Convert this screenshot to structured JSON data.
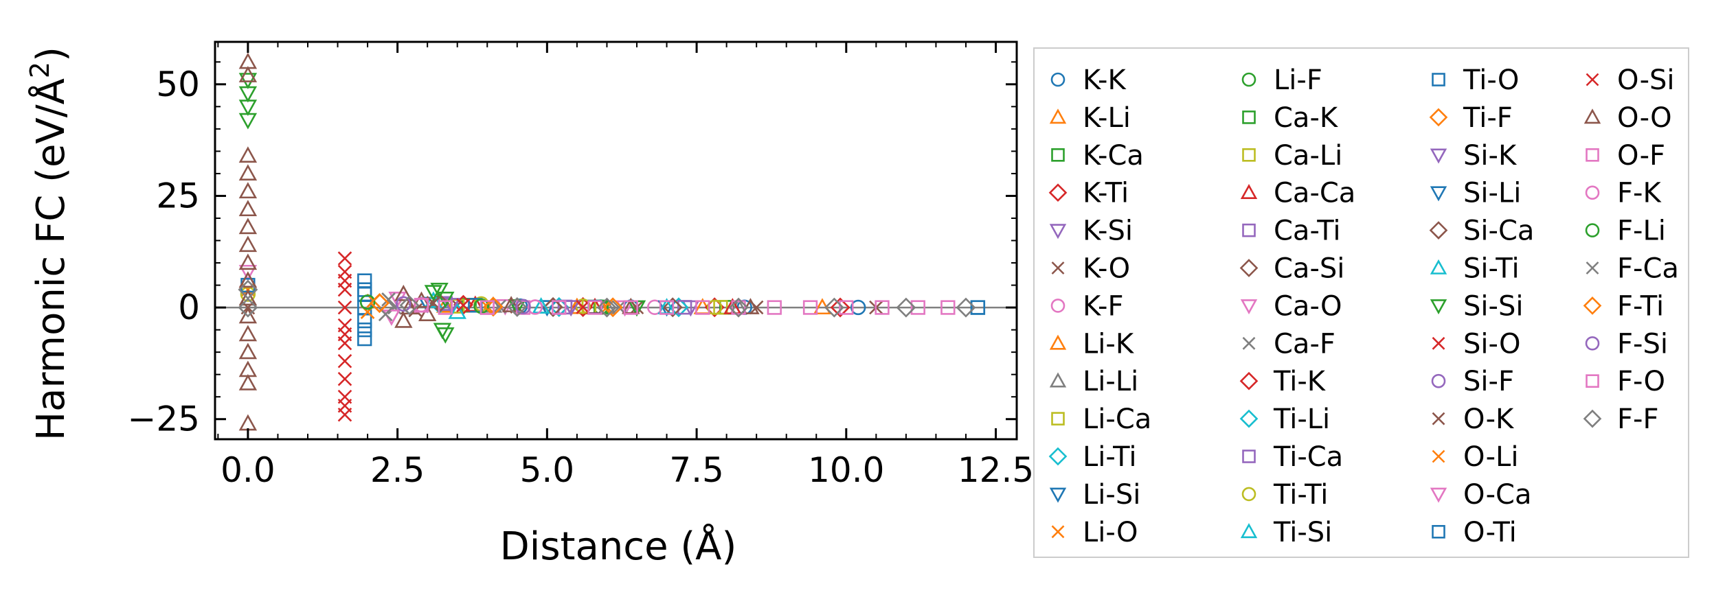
{
  "chart_data": {
    "type": "scatter",
    "title": "",
    "xlabel": "Distance (Å)",
    "ylabel_main": "Harmonic FC (eV/Å",
    "ylabel_sup": "2",
    "ylabel_close": ")",
    "xlim": [
      -0.55,
      12.85
    ],
    "ylim": [
      -29.5,
      59.5
    ],
    "xticks": [
      0.0,
      2.5,
      5.0,
      7.5,
      10.0,
      12.5
    ],
    "xtick_labels": [
      "0.0",
      "2.5",
      "5.0",
      "7.5",
      "10.0",
      "12.5"
    ],
    "yticks": [
      -25,
      0,
      25,
      50
    ],
    "ytick_labels": [
      "−25",
      "0",
      "25",
      "50"
    ],
    "zero_line": 0,
    "legend_position": "outside right",
    "legend_columns": 4,
    "series": [
      {
        "name": "K-K",
        "marker": "circle",
        "color": "#1f77b4",
        "points": [
          [
            4.55,
            0.3
          ],
          [
            6.4,
            0.1
          ],
          [
            8.3,
            0.05
          ],
          [
            10.2,
            0.02
          ]
        ]
      },
      {
        "name": "K-Li",
        "marker": "triangle-up",
        "color": "#ff7f0e",
        "points": [
          [
            3.3,
            0.4
          ],
          [
            5.5,
            0.1
          ],
          [
            7.6,
            0.05
          ],
          [
            9.6,
            0.02
          ]
        ]
      },
      {
        "name": "K-Ca",
        "marker": "square",
        "color": "#2ca02c",
        "points": [
          [
            3.7,
            0.5
          ],
          [
            5.9,
            0.1
          ],
          [
            8.0,
            0.05
          ]
        ]
      },
      {
        "name": "K-Ti",
        "marker": "diamond",
        "color": "#d62728",
        "points": [
          [
            3.6,
            0.6
          ],
          [
            5.6,
            0.1
          ],
          [
            7.8,
            0.05
          ],
          [
            9.9,
            0.02
          ]
        ]
      },
      {
        "name": "K-Si",
        "marker": "triangle-down",
        "color": "#9467bd",
        "points": [
          [
            3.4,
            0.6
          ],
          [
            5.4,
            0.1
          ],
          [
            7.4,
            0.05
          ]
        ]
      },
      {
        "name": "K-O",
        "marker": "x",
        "color": "#8c564b",
        "points": [
          [
            0.0,
            0.0
          ],
          [
            2.8,
            -0.6
          ],
          [
            3.1,
            1.0
          ],
          [
            3.5,
            0.5
          ],
          [
            4.5,
            0.2
          ],
          [
            6.5,
            0.05
          ],
          [
            8.5,
            0.02
          ],
          [
            10.5,
            0.01
          ]
        ]
      },
      {
        "name": "K-F",
        "marker": "circle",
        "color": "#e377c2",
        "points": [
          [
            2.9,
            0.6
          ],
          [
            4.8,
            0.1
          ],
          [
            6.8,
            0.05
          ]
        ]
      },
      {
        "name": "Li-K",
        "marker": "triangle-up",
        "color": "#ff7f0e",
        "points": [
          [
            3.3,
            0.4
          ],
          [
            5.5,
            0.1
          ]
        ]
      },
      {
        "name": "Li-Li",
        "marker": "triangle-up",
        "color": "#7f7f7f",
        "points": [
          [
            0.0,
            2.0
          ],
          [
            4.1,
            0.4
          ],
          [
            6.0,
            0.1
          ],
          [
            8.2,
            0.05
          ]
        ]
      },
      {
        "name": "Li-Ca",
        "marker": "square",
        "color": "#bcbd22",
        "points": [
          [
            3.5,
            0.3
          ],
          [
            5.7,
            0.1
          ],
          [
            7.9,
            0.05
          ]
        ]
      },
      {
        "name": "Li-Ti",
        "marker": "diamond",
        "color": "#17becf",
        "points": [
          [
            3.2,
            0.8
          ],
          [
            5.2,
            0.1
          ],
          [
            7.2,
            0.05
          ]
        ]
      },
      {
        "name": "Li-Si",
        "marker": "triangle-down",
        "color": "#1f77b4",
        "points": [
          [
            3.0,
            0.8
          ],
          [
            5.0,
            0.1
          ],
          [
            7.0,
            0.05
          ]
        ]
      },
      {
        "name": "Li-O",
        "marker": "x",
        "color": "#ff7f0e",
        "points": [
          [
            0.0,
            4.0
          ],
          [
            2.0,
            -1.0
          ],
          [
            2.1,
            1.5
          ],
          [
            4.0,
            0.2
          ],
          [
            6.0,
            0.05
          ]
        ]
      },
      {
        "name": "Li-F",
        "marker": "circle",
        "color": "#2ca02c",
        "points": [
          [
            2.0,
            1.2
          ],
          [
            3.9,
            0.3
          ],
          [
            5.9,
            0.1
          ]
        ]
      },
      {
        "name": "Ca-K",
        "marker": "square",
        "color": "#2ca02c",
        "points": [
          [
            3.7,
            0.5
          ],
          [
            5.9,
            0.1
          ]
        ]
      },
      {
        "name": "Ca-Li",
        "marker": "square",
        "color": "#bcbd22",
        "points": [
          [
            3.5,
            0.3
          ],
          [
            5.7,
            0.1
          ]
        ]
      },
      {
        "name": "Ca-Ca",
        "marker": "triangle-up",
        "color": "#d62728",
        "points": [
          [
            0.0,
            6.0
          ],
          [
            3.8,
            0.6
          ],
          [
            5.8,
            0.1
          ],
          [
            8.1,
            0.05
          ]
        ]
      },
      {
        "name": "Ca-Ti",
        "marker": "square",
        "color": "#9467bd",
        "points": [
          [
            3.3,
            0.9
          ],
          [
            5.3,
            0.1
          ],
          [
            7.3,
            0.05
          ]
        ]
      },
      {
        "name": "Ca-Si",
        "marker": "diamond",
        "color": "#8c564b",
        "points": [
          [
            3.2,
            1.0
          ],
          [
            5.1,
            0.1
          ],
          [
            7.1,
            0.05
          ]
        ]
      },
      {
        "name": "Ca-O",
        "marker": "triangle-down",
        "color": "#e377c2",
        "points": [
          [
            0.0,
            8.0
          ],
          [
            2.4,
            -2.0
          ],
          [
            2.5,
            2.0
          ],
          [
            4.3,
            0.3
          ],
          [
            6.3,
            0.05
          ]
        ]
      },
      {
        "name": "Ca-F",
        "marker": "x",
        "color": "#7f7f7f",
        "points": [
          [
            2.3,
            -1.5
          ],
          [
            2.35,
            1.8
          ],
          [
            2.45,
            0.0
          ],
          [
            4.2,
            0.2
          ],
          [
            6.2,
            0.05
          ]
        ]
      },
      {
        "name": "Ti-K",
        "marker": "diamond",
        "color": "#d62728",
        "points": [
          [
            3.6,
            0.6
          ],
          [
            5.6,
            0.1
          ]
        ]
      },
      {
        "name": "Ti-Li",
        "marker": "diamond",
        "color": "#17becf",
        "points": [
          [
            3.2,
            0.8
          ],
          [
            5.2,
            0.1
          ]
        ]
      },
      {
        "name": "Ti-Ca",
        "marker": "square",
        "color": "#9467bd",
        "points": [
          [
            3.3,
            0.9
          ],
          [
            5.3,
            0.1
          ]
        ]
      },
      {
        "name": "Ti-Ti",
        "marker": "circle",
        "color": "#bcbd22",
        "points": [
          [
            0.0,
            3.0
          ],
          [
            3.9,
            0.8
          ],
          [
            5.6,
            0.3
          ],
          [
            7.8,
            0.05
          ]
        ]
      },
      {
        "name": "Ti-Si",
        "marker": "triangle-up",
        "color": "#17becf",
        "points": [
          [
            3.1,
            1.5
          ],
          [
            3.5,
            -1.0
          ],
          [
            4.9,
            0.2
          ],
          [
            7.0,
            0.05
          ]
        ]
      },
      {
        "name": "Ti-O",
        "marker": "square",
        "color": "#1f77b4",
        "points": [
          [
            0.0,
            5.0
          ],
          [
            1.95,
            -7.0
          ],
          [
            1.95,
            -3.0
          ],
          [
            1.95,
            0.0
          ],
          [
            1.95,
            3.0
          ],
          [
            1.95,
            6.0
          ],
          [
            3.8,
            0.5
          ],
          [
            5.8,
            0.1
          ],
          [
            12.2,
            0.0
          ]
        ]
      },
      {
        "name": "Ti-F",
        "marker": "diamond",
        "color": "#ff7f0e",
        "points": [
          [
            2.2,
            1.0
          ],
          [
            4.1,
            0.2
          ],
          [
            6.1,
            0.05
          ]
        ]
      },
      {
        "name": "Si-K",
        "marker": "triangle-down",
        "color": "#9467bd",
        "points": [
          [
            3.4,
            0.6
          ],
          [
            5.4,
            0.1
          ]
        ]
      },
      {
        "name": "Si-Li",
        "marker": "triangle-down",
        "color": "#1f77b4",
        "points": [
          [
            3.0,
            0.8
          ],
          [
            5.0,
            0.1
          ]
        ]
      },
      {
        "name": "Si-Ca",
        "marker": "diamond",
        "color": "#8c564b",
        "points": [
          [
            3.2,
            1.0
          ],
          [
            5.1,
            0.1
          ]
        ]
      },
      {
        "name": "Si-Ti",
        "marker": "triangle-up",
        "color": "#17becf",
        "points": [
          [
            3.1,
            1.5
          ],
          [
            4.9,
            0.2
          ]
        ]
      },
      {
        "name": "Si-Si",
        "marker": "triangle-down",
        "color": "#2ca02c",
        "points": [
          [
            0.0,
            42.0
          ],
          [
            0.0,
            45.0
          ],
          [
            0.0,
            48.0
          ],
          [
            0.0,
            51.0
          ],
          [
            3.1,
            3.5
          ],
          [
            3.2,
            4.0
          ],
          [
            3.25,
            -5.0
          ],
          [
            3.3,
            -6.0
          ],
          [
            3.3,
            2.0
          ],
          [
            4.5,
            0.3
          ],
          [
            6.5,
            0.05
          ]
        ]
      },
      {
        "name": "Si-O",
        "marker": "x",
        "color": "#d62728",
        "points": [
          [
            1.62,
            -24.0
          ],
          [
            1.62,
            -20.0
          ],
          [
            1.62,
            -16.0
          ],
          [
            1.62,
            -12.0
          ],
          [
            1.62,
            -8.0
          ],
          [
            1.62,
            -4.0
          ],
          [
            1.62,
            0.0
          ],
          [
            1.62,
            4.0
          ],
          [
            1.62,
            8.0
          ],
          [
            1.62,
            11.0
          ],
          [
            3.6,
            0.5
          ],
          [
            5.6,
            0.1
          ]
        ]
      },
      {
        "name": "Si-F",
        "marker": "circle",
        "color": "#9467bd",
        "points": [
          [
            2.6,
            0.8
          ],
          [
            4.6,
            0.2
          ]
        ]
      },
      {
        "name": "O-K",
        "marker": "x",
        "color": "#8c564b",
        "points": [
          [
            2.8,
            -0.6
          ],
          [
            3.1,
            1.0
          ]
        ]
      },
      {
        "name": "O-Li",
        "marker": "x",
        "color": "#ff7f0e",
        "points": [
          [
            2.0,
            -1.0
          ],
          [
            2.1,
            1.5
          ]
        ]
      },
      {
        "name": "O-Ca",
        "marker": "triangle-down",
        "color": "#e377c2",
        "points": [
          [
            2.4,
            -2.0
          ],
          [
            2.5,
            2.0
          ]
        ]
      },
      {
        "name": "O-Ti",
        "marker": "square",
        "color": "#1f77b4",
        "points": [
          [
            1.95,
            -5.0
          ],
          [
            1.95,
            4.0
          ],
          [
            12.2,
            0.0
          ]
        ]
      },
      {
        "name": "O-Si",
        "marker": "x",
        "color": "#d62728",
        "points": [
          [
            1.62,
            -22.0
          ],
          [
            1.62,
            -6.0
          ],
          [
            1.62,
            6.0
          ]
        ]
      },
      {
        "name": "O-O",
        "marker": "triangle-up",
        "color": "#8c564b",
        "points": [
          [
            0.0,
            -26.0
          ],
          [
            0.0,
            -17.0
          ],
          [
            0.0,
            -14.0
          ],
          [
            0.0,
            -10.0
          ],
          [
            0.0,
            -6.0
          ],
          [
            0.0,
            -2.0
          ],
          [
            0.0,
            2.0
          ],
          [
            0.0,
            6.0
          ],
          [
            0.0,
            10.0
          ],
          [
            0.0,
            14.0
          ],
          [
            0.0,
            18.0
          ],
          [
            0.0,
            22.0
          ],
          [
            0.0,
            26.0
          ],
          [
            0.0,
            30.0
          ],
          [
            0.0,
            34.0
          ],
          [
            0.0,
            52.0
          ],
          [
            0.0,
            55.0
          ],
          [
            2.6,
            -3.0
          ],
          [
            2.6,
            3.0
          ],
          [
            2.7,
            0.0
          ],
          [
            2.9,
            1.5
          ],
          [
            3.0,
            -1.5
          ],
          [
            4.4,
            0.5
          ],
          [
            6.4,
            0.1
          ],
          [
            8.4,
            0.05
          ]
        ]
      },
      {
        "name": "O-F",
        "marker": "square",
        "color": "#e377c2",
        "points": [
          [
            2.9,
            0.5
          ],
          [
            3.3,
            0.0
          ],
          [
            4.0,
            0.0
          ],
          [
            4.6,
            0.0
          ],
          [
            5.2,
            0.0
          ],
          [
            5.8,
            0.0
          ],
          [
            6.4,
            0.0
          ],
          [
            7.0,
            0.0
          ],
          [
            7.6,
            0.0
          ],
          [
            8.2,
            0.0
          ],
          [
            8.8,
            0.0
          ],
          [
            9.4,
            0.0
          ],
          [
            10.0,
            0.0
          ],
          [
            10.6,
            0.0
          ],
          [
            11.2,
            0.0
          ],
          [
            11.7,
            0.0
          ]
        ]
      },
      {
        "name": "F-K",
        "marker": "circle",
        "color": "#e377c2",
        "points": [
          [
            2.9,
            0.6
          ],
          [
            4.8,
            0.1
          ]
        ]
      },
      {
        "name": "F-Li",
        "marker": "circle",
        "color": "#2ca02c",
        "points": [
          [
            2.0,
            1.2
          ],
          [
            3.9,
            0.3
          ]
        ]
      },
      {
        "name": "F-Ca",
        "marker": "x",
        "color": "#7f7f7f",
        "points": [
          [
            2.3,
            -1.5
          ],
          [
            2.35,
            1.8
          ]
        ]
      },
      {
        "name": "F-Ti",
        "marker": "diamond",
        "color": "#ff7f0e",
        "points": [
          [
            2.2,
            1.0
          ],
          [
            4.1,
            0.2
          ]
        ]
      },
      {
        "name": "F-Si",
        "marker": "circle",
        "color": "#9467bd",
        "points": [
          [
            2.6,
            0.8
          ],
          [
            4.6,
            0.2
          ]
        ]
      },
      {
        "name": "F-O",
        "marker": "square",
        "color": "#e377c2",
        "points": [
          [
            2.9,
            0.5
          ],
          [
            4.0,
            0.0
          ]
        ]
      },
      {
        "name": "F-F",
        "marker": "diamond",
        "color": "#7f7f7f",
        "points": [
          [
            0.0,
            0.0
          ],
          [
            0.0,
            4.0
          ],
          [
            2.7,
            0.5
          ],
          [
            4.5,
            0.1
          ],
          [
            6.0,
            0.0
          ],
          [
            8.2,
            0.0
          ],
          [
            9.8,
            0.0
          ],
          [
            11.0,
            0.0
          ],
          [
            12.0,
            0.0
          ]
        ]
      }
    ]
  }
}
